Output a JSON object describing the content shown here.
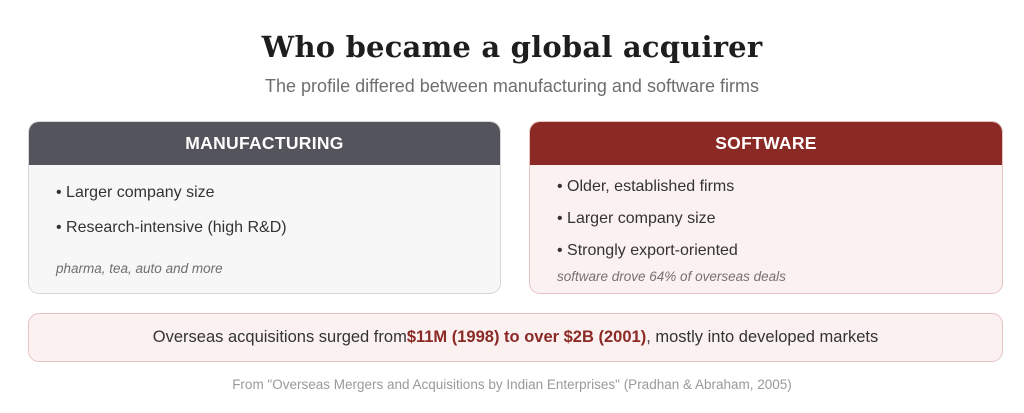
{
  "title": "Who became a global acquirer",
  "subtitle": "The profile differed between manufacturing and software firms",
  "manufacturing": {
    "header": "MANUFACTURING",
    "items": [
      "• Larger company size",
      "• Research-intensive (high R&D)"
    ],
    "note": "pharma, tea, auto and more"
  },
  "software": {
    "header": "SOFTWARE",
    "items": [
      "• Older, established firms",
      "• Larger company size",
      "• Strongly export-oriented"
    ],
    "note": "software drove 64% of overseas deals"
  },
  "banner": {
    "prefix": "Overseas acquisitions surged from ",
    "highlight": "$11M (1998) to over $2B (2001)",
    "suffix": ", mostly into developed markets"
  },
  "source": "From \"Overseas Mergers and Acquisitions by Indian Enterprises\" (Pradhan & Abraham, 2005)",
  "colors": {
    "manufacturing_header": "#54545c",
    "software_header": "#8b2a25",
    "highlight": "#8b2a25"
  }
}
